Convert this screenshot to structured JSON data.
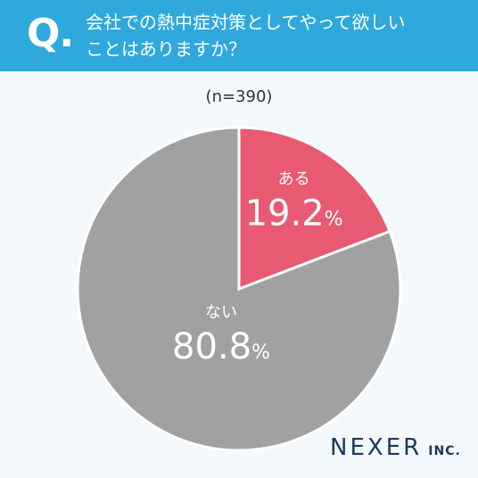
{
  "header": {
    "q": "Q.",
    "question_lines": [
      "会社での熱中症対策としてやって欲しい",
      "ことはありますか？"
    ]
  },
  "sample": "(n=390)",
  "chart_data": {
    "type": "pie",
    "title": "会社での熱中症対策としてやって欲しいことはありますか？",
    "slices": [
      {
        "label": "ある",
        "value": 19.2,
        "display": "19.2",
        "unit": "%",
        "color": "#e85a72"
      },
      {
        "label": "ない",
        "value": 80.8,
        "display": "80.8",
        "unit": "%",
        "color": "#a1a1a1"
      }
    ]
  },
  "brand": {
    "name": "NEXER",
    "suffix": "INC."
  }
}
